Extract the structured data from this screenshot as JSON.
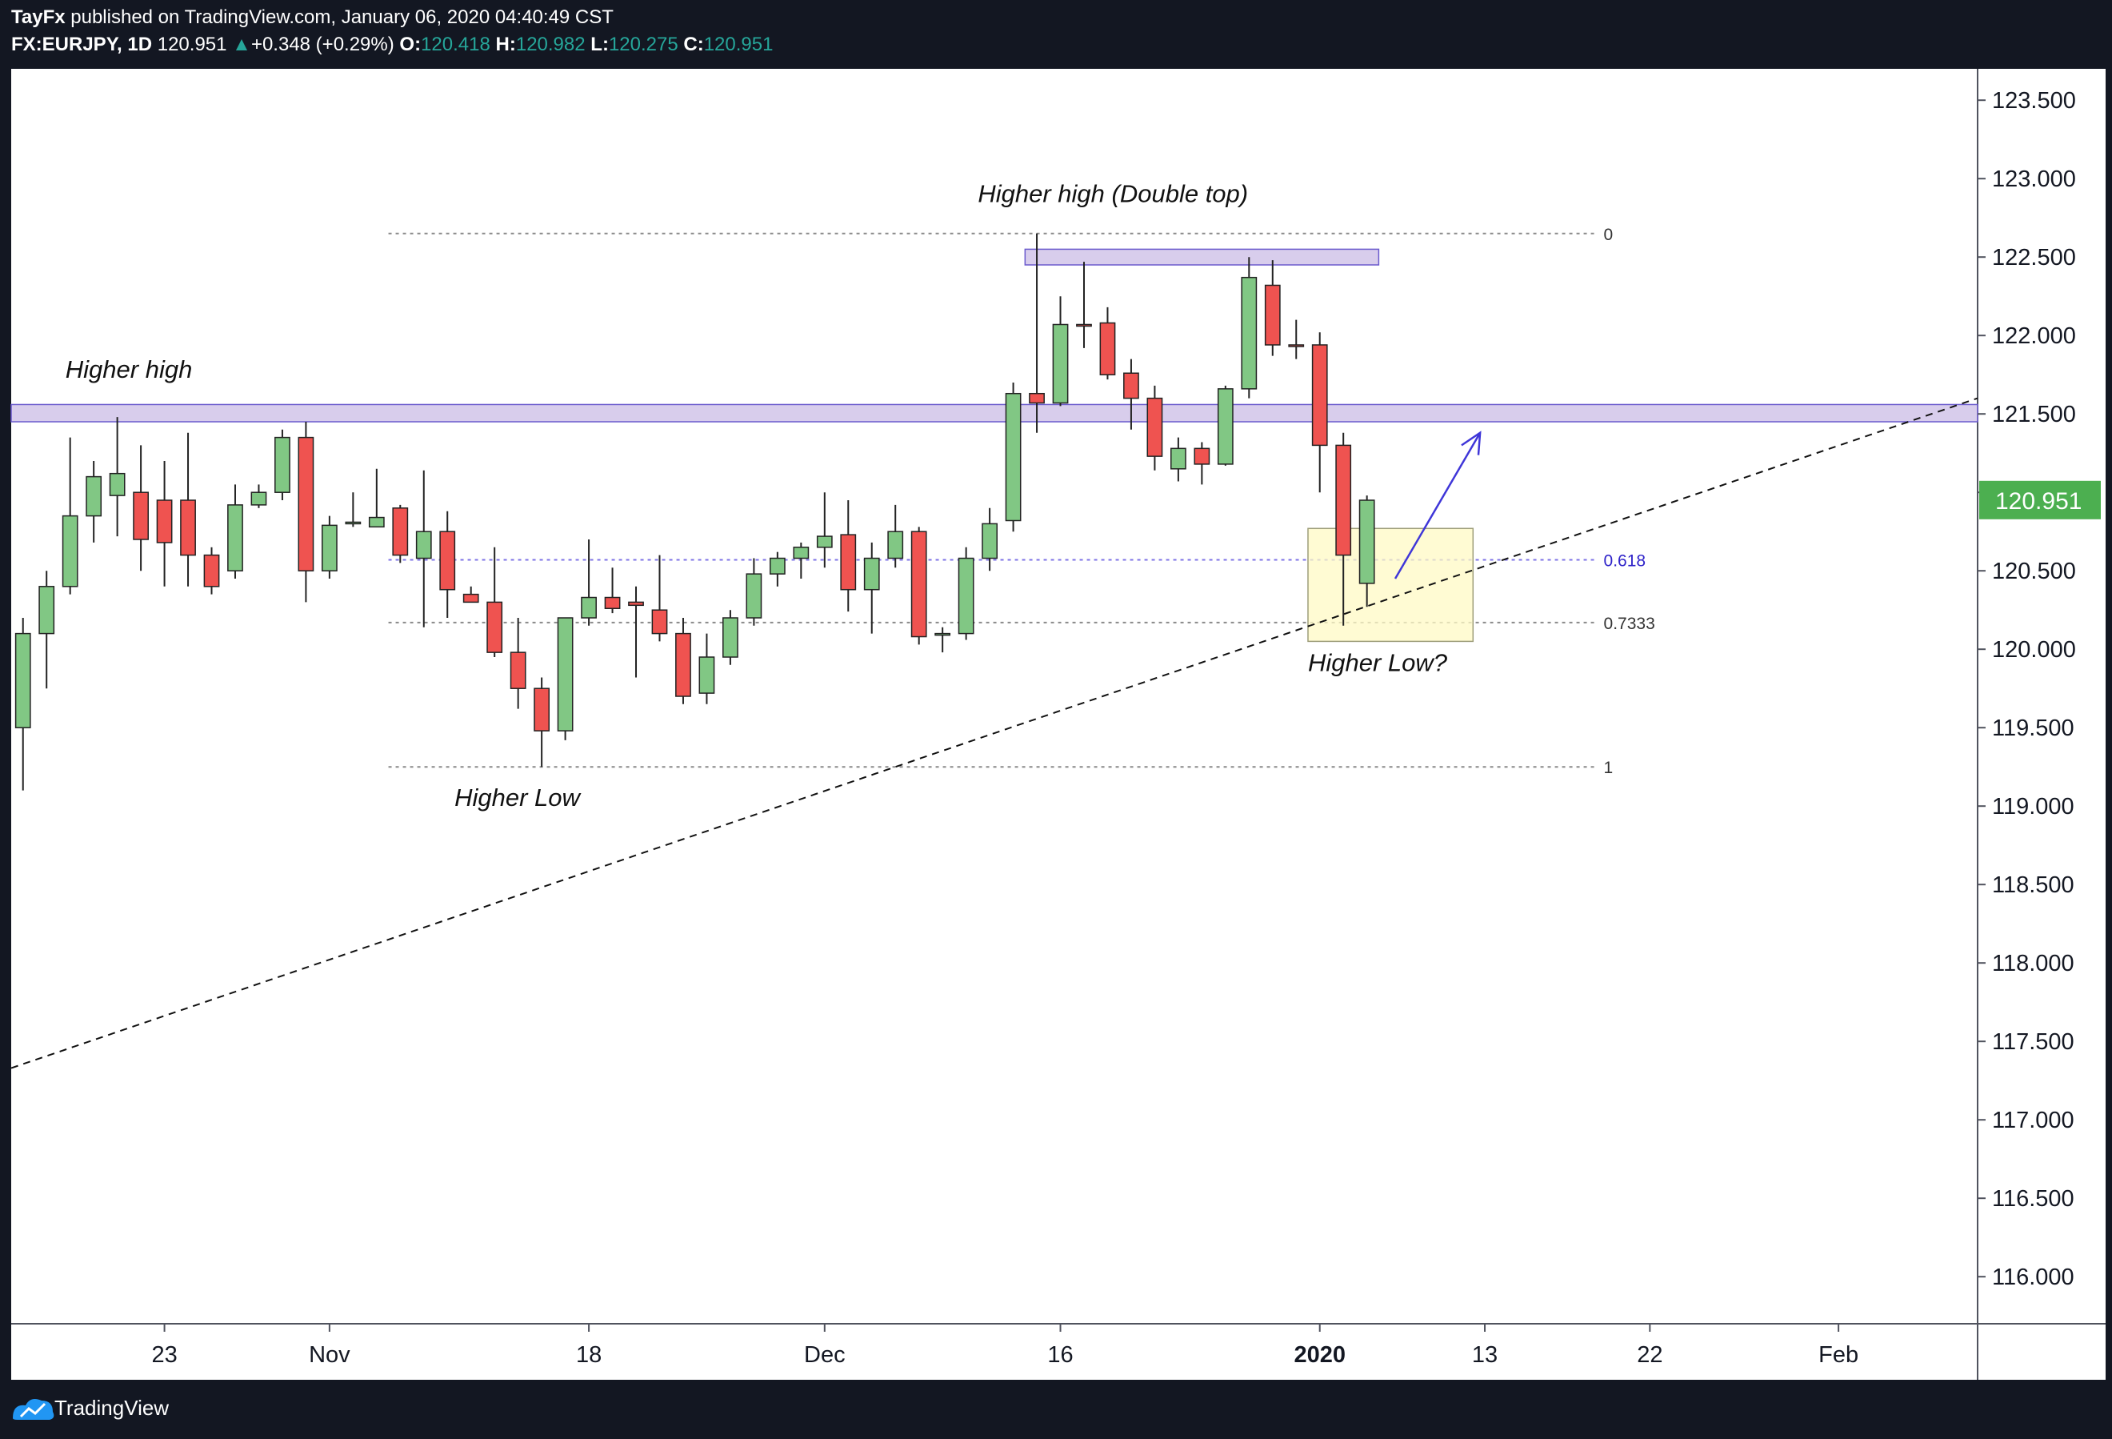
{
  "header": {
    "author": "TayFx",
    "published_text": "published on TradingView.com, January 06, 2020 04:40:49 CST",
    "symbol": "FX:EURJPY, 1D",
    "last": "120.951",
    "change_arrow": "▲",
    "change": "+0.348 (+0.29%)",
    "o_label": "O:",
    "o_value": "120.418",
    "h_label": "H:",
    "h_value": "120.982",
    "l_label": "L:",
    "l_value": "120.275",
    "c_label": "C:",
    "c_value": "120.951"
  },
  "footer": {
    "brand": "TradingView"
  },
  "colors": {
    "up": "#81c784",
    "down": "#ef5350",
    "zone": "#d1c4e9",
    "box": "#fff9c4",
    "arrow": "#3f36d8",
    "price_tag": "#4caf50"
  },
  "chart_data": {
    "type": "candlestick",
    "ylim": [
      115.7,
      123.7
    ],
    "y_ticks": [
      123.5,
      123.0,
      122.5,
      122.0,
      121.5,
      121.0,
      120.5,
      120.0,
      119.5,
      119.0,
      118.5,
      118.0,
      117.5,
      117.0,
      116.5,
      116.0
    ],
    "y_tick_labels": [
      "123.500",
      "123.000",
      "122.500",
      "122.000",
      "121.500",
      "121.000",
      "120.500",
      "120.000",
      "119.500",
      "119.000",
      "118.500",
      "118.000",
      "117.500",
      "117.000",
      "116.500",
      "116.000"
    ],
    "x_ticks": [
      {
        "bar": 6,
        "label": "23"
      },
      {
        "bar": 13,
        "label": "Nov"
      },
      {
        "bar": 24,
        "label": "18"
      },
      {
        "bar": 34,
        "label": "Dec"
      },
      {
        "bar": 44,
        "label": "16"
      },
      {
        "bar": 55,
        "label": "2020"
      },
      {
        "bar": 62,
        "label": "13"
      },
      {
        "bar": 69,
        "label": "22"
      },
      {
        "bar": 77,
        "label": "Feb"
      }
    ],
    "x_range": [
      -0.5,
      82.9
    ],
    "candles": [
      {
        "o": 119.5,
        "h": 120.2,
        "l": 119.1,
        "c": 120.1
      },
      {
        "o": 120.1,
        "h": 120.5,
        "l": 119.75,
        "c": 120.4
      },
      {
        "o": 120.4,
        "h": 121.35,
        "l": 120.35,
        "c": 120.85
      },
      {
        "o": 120.85,
        "h": 121.2,
        "l": 120.68,
        "c": 121.1
      },
      {
        "o": 120.98,
        "h": 121.48,
        "l": 120.72,
        "c": 121.12
      },
      {
        "o": 121.0,
        "h": 121.3,
        "l": 120.5,
        "c": 120.7
      },
      {
        "o": 120.95,
        "h": 121.2,
        "l": 120.4,
        "c": 120.68
      },
      {
        "o": 120.95,
        "h": 121.38,
        "l": 120.4,
        "c": 120.6
      },
      {
        "o": 120.6,
        "h": 120.65,
        "l": 120.35,
        "c": 120.4
      },
      {
        "o": 120.5,
        "h": 121.05,
        "l": 120.45,
        "c": 120.92
      },
      {
        "o": 120.92,
        "h": 121.05,
        "l": 120.9,
        "c": 121.0
      },
      {
        "o": 121.0,
        "h": 121.4,
        "l": 120.95,
        "c": 121.35
      },
      {
        "o": 121.35,
        "h": 121.45,
        "l": 120.3,
        "c": 120.5
      },
      {
        "o": 120.5,
        "h": 120.85,
        "l": 120.45,
        "c": 120.79
      },
      {
        "o": 120.8,
        "h": 121.0,
        "l": 120.78,
        "c": 120.81
      },
      {
        "o": 120.78,
        "h": 121.15,
        "l": 120.78,
        "c": 120.84
      },
      {
        "o": 120.9,
        "h": 120.92,
        "l": 120.55,
        "c": 120.6
      },
      {
        "o": 120.58,
        "h": 121.14,
        "l": 120.14,
        "c": 120.75
      },
      {
        "o": 120.75,
        "h": 120.88,
        "l": 120.2,
        "c": 120.38
      },
      {
        "o": 120.35,
        "h": 120.4,
        "l": 120.3,
        "c": 120.3
      },
      {
        "o": 120.3,
        "h": 120.65,
        "l": 119.95,
        "c": 119.98
      },
      {
        "o": 119.98,
        "h": 120.2,
        "l": 119.62,
        "c": 119.75
      },
      {
        "o": 119.75,
        "h": 119.82,
        "l": 119.25,
        "c": 119.48
      },
      {
        "o": 119.48,
        "h": 120.2,
        "l": 119.42,
        "c": 120.2
      },
      {
        "o": 120.2,
        "h": 120.7,
        "l": 120.15,
        "c": 120.33
      },
      {
        "o": 120.33,
        "h": 120.52,
        "l": 120.23,
        "c": 120.26
      },
      {
        "o": 120.3,
        "h": 120.4,
        "l": 119.82,
        "c": 120.28
      },
      {
        "o": 120.25,
        "h": 120.6,
        "l": 120.05,
        "c": 120.1
      },
      {
        "o": 120.1,
        "h": 120.2,
        "l": 119.65,
        "c": 119.7
      },
      {
        "o": 119.72,
        "h": 120.1,
        "l": 119.65,
        "c": 119.95
      },
      {
        "o": 119.95,
        "h": 120.25,
        "l": 119.9,
        "c": 120.2
      },
      {
        "o": 120.2,
        "h": 120.58,
        "l": 120.15,
        "c": 120.48
      },
      {
        "o": 120.48,
        "h": 120.62,
        "l": 120.4,
        "c": 120.58
      },
      {
        "o": 120.58,
        "h": 120.68,
        "l": 120.45,
        "c": 120.65
      },
      {
        "o": 120.65,
        "h": 121.0,
        "l": 120.52,
        "c": 120.72
      },
      {
        "o": 120.73,
        "h": 120.95,
        "l": 120.24,
        "c": 120.38
      },
      {
        "o": 120.38,
        "h": 120.68,
        "l": 120.1,
        "c": 120.58
      },
      {
        "o": 120.58,
        "h": 120.92,
        "l": 120.52,
        "c": 120.75
      },
      {
        "o": 120.75,
        "h": 120.78,
        "l": 120.03,
        "c": 120.08
      },
      {
        "o": 120.1,
        "h": 120.14,
        "l": 119.98,
        "c": 120.1
      },
      {
        "o": 120.1,
        "h": 120.65,
        "l": 120.06,
        "c": 120.58
      },
      {
        "o": 120.58,
        "h": 120.9,
        "l": 120.5,
        "c": 120.8
      },
      {
        "o": 120.82,
        "h": 121.7,
        "l": 120.75,
        "c": 121.63
      },
      {
        "o": 121.63,
        "h": 122.65,
        "l": 121.38,
        "c": 121.57
      },
      {
        "o": 121.57,
        "h": 122.25,
        "l": 121.55,
        "c": 122.07
      },
      {
        "o": 122.07,
        "h": 122.47,
        "l": 121.92,
        "c": 122.06
      },
      {
        "o": 122.08,
        "h": 122.18,
        "l": 121.72,
        "c": 121.75
      },
      {
        "o": 121.76,
        "h": 121.85,
        "l": 121.4,
        "c": 121.6
      },
      {
        "o": 121.6,
        "h": 121.68,
        "l": 121.14,
        "c": 121.23
      },
      {
        "o": 121.15,
        "h": 121.35,
        "l": 121.07,
        "c": 121.28
      },
      {
        "o": 121.28,
        "h": 121.32,
        "l": 121.05,
        "c": 121.18
      },
      {
        "o": 121.18,
        "h": 121.68,
        "l": 121.17,
        "c": 121.66
      },
      {
        "o": 121.66,
        "h": 122.5,
        "l": 121.6,
        "c": 122.37
      },
      {
        "o": 122.32,
        "h": 122.48,
        "l": 121.87,
        "c": 121.94
      },
      {
        "o": 121.94,
        "h": 122.1,
        "l": 121.85,
        "c": 121.93
      },
      {
        "o": 121.94,
        "h": 122.02,
        "l": 121.0,
        "c": 121.3
      },
      {
        "o": 121.3,
        "h": 121.38,
        "l": 120.15,
        "c": 120.6
      },
      {
        "o": 120.42,
        "h": 120.98,
        "l": 120.27,
        "c": 120.95
      }
    ],
    "annotations": [
      {
        "text": "Higher high (Double top)"
      },
      {
        "text": "Higher high"
      },
      {
        "text": "Higher Low"
      },
      {
        "text": "Higher Low?"
      }
    ],
    "fib_levels": [
      {
        "label": "0",
        "price": 122.65
      },
      {
        "label": "0.618",
        "price": 120.57
      },
      {
        "label": "0.7333",
        "price": 120.17
      },
      {
        "label": "1",
        "price": 119.25
      }
    ],
    "zones": [
      {
        "name": "top",
        "from_bar": 42.5,
        "to_bar": 57.5,
        "low": 122.45,
        "high": 122.55
      },
      {
        "name": "resistance",
        "from_bar": -0.5,
        "to_bar": 82.9,
        "low": 121.45,
        "high": 121.56
      }
    ],
    "trendline": {
      "from_bar": -0.5,
      "from_price": 117.33,
      "to_bar": 82.9,
      "to_price": 121.6
    },
    "highlight_box": {
      "from_bar": 54.5,
      "to_bar": 61.5,
      "low": 120.05,
      "high": 120.77
    },
    "arrow": {
      "from_bar": 58.2,
      "from_price": 120.45,
      "to_bar": 61.8,
      "to_price": 121.38
    },
    "current_price": {
      "value": 120.951,
      "label": "120.951"
    }
  }
}
